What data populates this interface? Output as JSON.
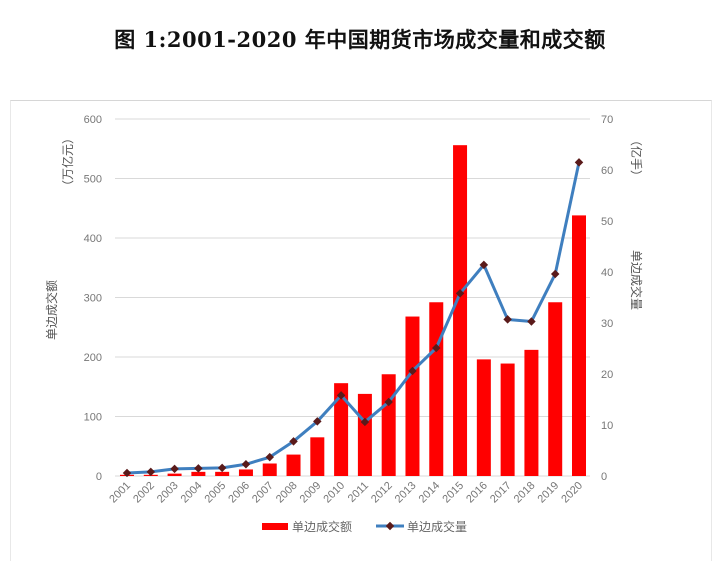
{
  "title": "图 1:2001-2020 年中国期货市场成交量和成交额",
  "chart_data": {
    "type": "bar+line",
    "title": "图 1:2001-2020 年中国期货市场成交量和成交额",
    "categories": [
      "2001",
      "2002",
      "2003",
      "2004",
      "2005",
      "2006",
      "2007",
      "2008",
      "2009",
      "2010",
      "2011",
      "2012",
      "2013",
      "2014",
      "2015",
      "2016",
      "2017",
      "2018",
      "2019",
      "2020"
    ],
    "series": [
      {
        "name": "单边成交额",
        "type": "bar",
        "axis": "left",
        "color": "#ff0000",
        "values": [
          2,
          2,
          4,
          7,
          7,
          11,
          21,
          36,
          65,
          156,
          138,
          171,
          268,
          292,
          556,
          196,
          189,
          212,
          292,
          438
        ]
      },
      {
        "name": "单边成交量",
        "type": "line",
        "axis": "right",
        "color": "#3f7fbf",
        "marker_color": "#5a1a1a",
        "values": [
          0.6,
          0.8,
          1.4,
          1.5,
          1.6,
          2.3,
          3.7,
          6.8,
          10.7,
          15.8,
          10.6,
          14.5,
          20.6,
          25.1,
          35.8,
          41.4,
          30.7,
          30.3,
          39.6,
          61.5
        ]
      }
    ],
    "ylabel_left": "单边成交额",
    "ylabel_left_unit": "（万亿元）",
    "ylabel_right": "单边成交量",
    "ylabel_right_unit": "（亿手）",
    "ylim_left": [
      0,
      600
    ],
    "yticks_left": [
      "0",
      "100",
      "200",
      "300",
      "400",
      "500",
      "600"
    ],
    "ylim_right": [
      0,
      70
    ],
    "yticks_right": [
      "0",
      "10",
      "20",
      "30",
      "40",
      "50",
      "60",
      "70"
    ],
    "grid": true,
    "legend": "bottom"
  }
}
